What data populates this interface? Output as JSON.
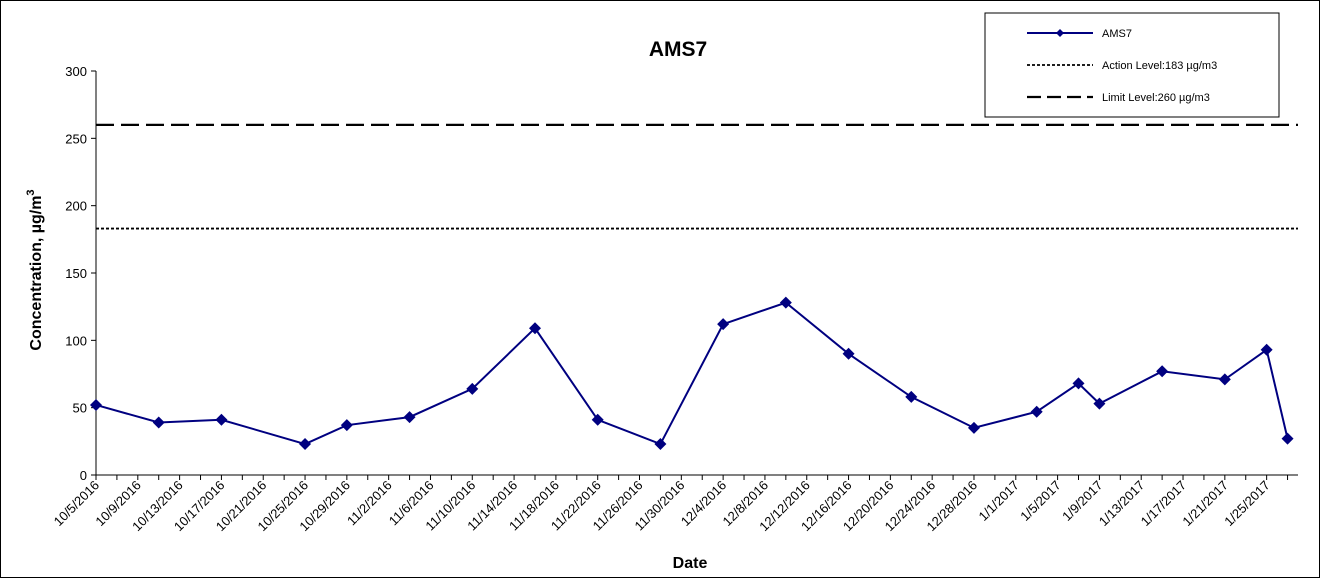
{
  "chart_data": {
    "type": "line",
    "title": "AMS7",
    "xlabel": "Date",
    "ylabel_main": "Concentration, µg/m",
    "ylabel_sup": "3",
    "ylim": [
      0,
      300
    ],
    "yticks": [
      0,
      50,
      100,
      150,
      200,
      250,
      300
    ],
    "x_range": [
      "2016-10-05",
      "2017-01-28"
    ],
    "x_tick_labels": [
      "10/5/2016",
      "10/9/2016",
      "10/13/2016",
      "10/17/2016",
      "10/21/2016",
      "10/25/2016",
      "10/29/2016",
      "11/2/2016",
      "11/6/2016",
      "11/10/2016",
      "11/14/2016",
      "11/18/2016",
      "11/22/2016",
      "11/26/2016",
      "11/30/2016",
      "12/4/2016",
      "12/8/2016",
      "12/12/2016",
      "12/16/2016",
      "12/20/2016",
      "12/24/2016",
      "12/28/2016",
      "1/1/2017",
      "1/5/2017",
      "1/9/2017",
      "1/13/2017",
      "1/17/2017",
      "1/21/2017",
      "1/25/2017"
    ],
    "grid": false,
    "legend_position": "top-right",
    "series": [
      {
        "name": "AMS7",
        "color": "#000080",
        "marker": "diamond",
        "x": [
          "2016-10-05",
          "2016-10-11",
          "2016-10-17",
          "2016-10-25",
          "2016-10-29",
          "2016-11-04",
          "2016-11-10",
          "2016-11-16",
          "2016-11-22",
          "2016-11-28",
          "2016-12-04",
          "2016-12-10",
          "2016-12-16",
          "2016-12-22",
          "2016-12-28",
          "2017-01-03",
          "2017-01-07",
          "2017-01-09",
          "2017-01-15",
          "2017-01-21",
          "2017-01-25",
          "2017-01-27"
        ],
        "values": [
          52,
          39,
          41,
          23,
          37,
          43,
          64,
          109,
          41,
          23,
          112,
          128,
          90,
          58,
          35,
          47,
          68,
          53,
          77,
          71,
          93,
          27
        ]
      }
    ],
    "reference_lines": [
      {
        "name": "Action Level:183 µg/m3",
        "value": 183,
        "style": "dotted",
        "color": "#000000"
      },
      {
        "name": "Limit Level:260 µg/m3",
        "value": 260,
        "style": "dashed",
        "color": "#000000"
      }
    ]
  }
}
